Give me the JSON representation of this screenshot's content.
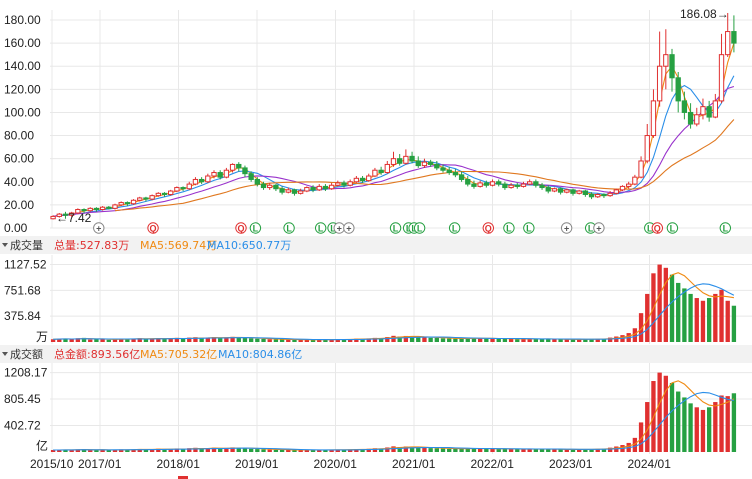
{
  "colors": {
    "up": "#e03030",
    "down": "#26a042",
    "ma5": "#f08a12",
    "ma10": "#2a8ee8",
    "ma20": "#9932cc",
    "ma30": "#e07820",
    "ma60": "#2ea8d8",
    "grid": "#e8e8e8",
    "panel_bar": "#f2f2f2"
  },
  "price_panel": {
    "yticks": [
      "180.00",
      "160.00",
      "140.00",
      "120.00",
      "100.00",
      "80.00",
      "60.00",
      "40.00",
      "20.00",
      "0.00"
    ],
    "max_label": "186.08→",
    "min_label": "←7.42"
  },
  "volume_panel": {
    "title": "成交量",
    "yticks": [
      "1127.52",
      "751.68",
      "375.84"
    ],
    "unit": "万",
    "legend": {
      "total": "总量:527.83万",
      "ma5": "MA5:569.74万",
      "ma10": "MA10:650.77万"
    }
  },
  "amount_panel": {
    "title": "成交额",
    "yticks": [
      "1208.17",
      "805.45",
      "402.72"
    ],
    "unit": "亿",
    "legend": {
      "total": "总金额:893.56亿",
      "ma5": "MA5:705.32亿",
      "ma10": "MA10:804.86亿"
    }
  },
  "x_dates": [
    "2015/10",
    "2017/01",
    "2018/01",
    "2019/01",
    "2020/01",
    "2021/01",
    "2022/01",
    "2023/01",
    "2024/01"
  ],
  "events": [
    {
      "t": 0.071,
      "label": "+",
      "kind": "plus"
    },
    {
      "t": 0.15,
      "label": "Q",
      "kind": "q"
    },
    {
      "t": 0.278,
      "label": "Q",
      "kind": "q"
    },
    {
      "t": 0.299,
      "label": "L",
      "kind": "l"
    },
    {
      "t": 0.348,
      "label": "L",
      "kind": "l"
    },
    {
      "t": 0.394,
      "label": "L",
      "kind": "l"
    },
    {
      "t": 0.412,
      "label": "L",
      "kind": "l"
    },
    {
      "t": 0.421,
      "label": "+",
      "kind": "plus"
    },
    {
      "t": 0.435,
      "label": "+",
      "kind": "plus"
    },
    {
      "t": 0.503,
      "label": "L",
      "kind": "l"
    },
    {
      "t": 0.522,
      "label": "L",
      "kind": "l"
    },
    {
      "t": 0.53,
      "label": "L",
      "kind": "l"
    },
    {
      "t": 0.538,
      "label": "L",
      "kind": "l"
    },
    {
      "t": 0.589,
      "label": "L",
      "kind": "l"
    },
    {
      "t": 0.638,
      "label": "Q",
      "kind": "q"
    },
    {
      "t": 0.668,
      "label": "L",
      "kind": "l"
    },
    {
      "t": 0.697,
      "label": "L",
      "kind": "l"
    },
    {
      "t": 0.752,
      "label": "+",
      "kind": "plus"
    },
    {
      "t": 0.787,
      "label": "L",
      "kind": "l"
    },
    {
      "t": 0.799,
      "label": "+",
      "kind": "plus"
    },
    {
      "t": 0.873,
      "label": "L",
      "kind": "l"
    },
    {
      "t": 0.884,
      "label": "Q",
      "kind": "q"
    },
    {
      "t": 0.906,
      "label": "L",
      "kind": "l"
    },
    {
      "t": 0.983,
      "label": "L",
      "kind": "l"
    }
  ],
  "chart_data": {
    "type": "candlestick",
    "price_range": [
      0,
      186.08
    ],
    "price_max": 186.08,
    "price_min": 7.42,
    "volume_max": 1127.52,
    "amount_max": 1208.17,
    "x_start": "2015/10",
    "x_end": "2024/03",
    "candles": [
      [
        8,
        10,
        7.4,
        11,
        40,
        30
      ],
      [
        10,
        12,
        9,
        13,
        45,
        32
      ],
      [
        12,
        11,
        8,
        14,
        50,
        35
      ],
      [
        11,
        13,
        9,
        14,
        38,
        28
      ],
      [
        13,
        16,
        12,
        17,
        55,
        40
      ],
      [
        16,
        15,
        13,
        17,
        60,
        45
      ],
      [
        15,
        17,
        14,
        18,
        35,
        28
      ],
      [
        17,
        16,
        14,
        18,
        40,
        30
      ],
      [
        16,
        18,
        15,
        19,
        38,
        30
      ],
      [
        18,
        17,
        16,
        19,
        32,
        26
      ],
      [
        17,
        20,
        16,
        21,
        45,
        36
      ],
      [
        20,
        22,
        19,
        23,
        50,
        40
      ],
      [
        22,
        21,
        19,
        23,
        42,
        34
      ],
      [
        21,
        24,
        20,
        25,
        48,
        40
      ],
      [
        24,
        26,
        23,
        27,
        55,
        46
      ],
      [
        26,
        25,
        23,
        27,
        40,
        34
      ],
      [
        25,
        28,
        24,
        29,
        52,
        44
      ],
      [
        28,
        30,
        27,
        31,
        58,
        50
      ],
      [
        30,
        29,
        27,
        31,
        44,
        38
      ],
      [
        29,
        32,
        28,
        33,
        50,
        44
      ],
      [
        32,
        35,
        31,
        36,
        60,
        54
      ],
      [
        35,
        34,
        32,
        36,
        46,
        40
      ],
      [
        34,
        38,
        33,
        40,
        64,
        58
      ],
      [
        38,
        42,
        37,
        44,
        70,
        64
      ],
      [
        42,
        40,
        38,
        44,
        52,
        46
      ],
      [
        40,
        45,
        39,
        47,
        66,
        60
      ],
      [
        45,
        48,
        43,
        50,
        72,
        66
      ],
      [
        48,
        44,
        42,
        50,
        55,
        50
      ],
      [
        44,
        50,
        43,
        52,
        68,
        62
      ],
      [
        50,
        55,
        48,
        56,
        75,
        70
      ],
      [
        55,
        52,
        49,
        57,
        62,
        58
      ],
      [
        52,
        47,
        44,
        54,
        58,
        54
      ],
      [
        47,
        42,
        40,
        49,
        52,
        48
      ],
      [
        42,
        38,
        36,
        44,
        48,
        44
      ],
      [
        38,
        35,
        33,
        40,
        44,
        40
      ],
      [
        35,
        37,
        33,
        39,
        40,
        36
      ],
      [
        37,
        34,
        32,
        38,
        36,
        33
      ],
      [
        34,
        31,
        29,
        36,
        38,
        34
      ],
      [
        31,
        33,
        30,
        35,
        34,
        31
      ],
      [
        33,
        30,
        28,
        34,
        32,
        29
      ],
      [
        30,
        32,
        29,
        34,
        30,
        28
      ],
      [
        32,
        35,
        31,
        36,
        34,
        31
      ],
      [
        35,
        33,
        31,
        37,
        32,
        30
      ],
      [
        33,
        36,
        32,
        38,
        36,
        33
      ],
      [
        36,
        34,
        32,
        38,
        34,
        31
      ],
      [
        34,
        37,
        33,
        39,
        36,
        33
      ],
      [
        37,
        39,
        36,
        41,
        40,
        37
      ],
      [
        39,
        37,
        35,
        41,
        38,
        35
      ],
      [
        37,
        40,
        36,
        42,
        42,
        39
      ],
      [
        40,
        43,
        39,
        45,
        48,
        45
      ],
      [
        43,
        41,
        39,
        45,
        44,
        41
      ],
      [
        41,
        45,
        40,
        47,
        52,
        49
      ],
      [
        45,
        50,
        44,
        52,
        60,
        57
      ],
      [
        50,
        48,
        46,
        53,
        56,
        53
      ],
      [
        48,
        55,
        47,
        58,
        72,
        69
      ],
      [
        55,
        60,
        53,
        66,
        90,
        86
      ],
      [
        60,
        56,
        54,
        64,
        80,
        76
      ],
      [
        56,
        62,
        55,
        68,
        88,
        84
      ],
      [
        62,
        58,
        56,
        66,
        76,
        73
      ],
      [
        58,
        54,
        52,
        62,
        70,
        67
      ],
      [
        54,
        57,
        52,
        60,
        66,
        63
      ],
      [
        57,
        55,
        53,
        59,
        62,
        59
      ],
      [
        55,
        52,
        50,
        58,
        58,
        56
      ],
      [
        52,
        50,
        48,
        55,
        54,
        52
      ],
      [
        50,
        48,
        46,
        53,
        50,
        48
      ],
      [
        48,
        46,
        44,
        51,
        48,
        46
      ],
      [
        46,
        42,
        40,
        49,
        52,
        50
      ],
      [
        42,
        38,
        36,
        45,
        60,
        58
      ],
      [
        38,
        36,
        34,
        41,
        56,
        54
      ],
      [
        36,
        39,
        35,
        41,
        52,
        50
      ],
      [
        39,
        37,
        35,
        41,
        48,
        47
      ],
      [
        37,
        40,
        36,
        42,
        50,
        49
      ],
      [
        40,
        38,
        36,
        42,
        46,
        45
      ],
      [
        38,
        35,
        33,
        40,
        50,
        49
      ],
      [
        35,
        37,
        34,
        39,
        44,
        43
      ],
      [
        37,
        36,
        34,
        39,
        40,
        40
      ],
      [
        36,
        38,
        35,
        40,
        44,
        44
      ],
      [
        38,
        40,
        37,
        42,
        48,
        48
      ],
      [
        40,
        37,
        35,
        42,
        46,
        46
      ],
      [
        37,
        35,
        33,
        39,
        42,
        42
      ],
      [
        35,
        32,
        30,
        37,
        44,
        44
      ],
      [
        32,
        34,
        31,
        35,
        40,
        40
      ],
      [
        34,
        31,
        29,
        35,
        38,
        38
      ],
      [
        31,
        33,
        30,
        34,
        36,
        36
      ],
      [
        33,
        30,
        28,
        34,
        40,
        41
      ],
      [
        30,
        32,
        29,
        33,
        38,
        39
      ],
      [
        32,
        29,
        27,
        33,
        42,
        43
      ],
      [
        29,
        27,
        25,
        31,
        40,
        41
      ],
      [
        27,
        29,
        26,
        30,
        46,
        47
      ],
      [
        29,
        28,
        26,
        30,
        50,
        52
      ],
      [
        28,
        30,
        27,
        32,
        64,
        66
      ],
      [
        30,
        33,
        29,
        34,
        80,
        84
      ],
      [
        33,
        36,
        32,
        37,
        100,
        106
      ],
      [
        36,
        38,
        34,
        40,
        130,
        138
      ],
      [
        38,
        44,
        37,
        46,
        200,
        215
      ],
      [
        44,
        58,
        43,
        62,
        420,
        450
      ],
      [
        58,
        80,
        56,
        90,
        700,
        760
      ],
      [
        80,
        110,
        78,
        120,
        1000,
        1080
      ],
      [
        110,
        140,
        105,
        170,
        1127,
        1208
      ],
      [
        140,
        150,
        120,
        172,
        1080,
        1160
      ],
      [
        150,
        130,
        118,
        155,
        980,
        1050
      ],
      [
        130,
        110,
        100,
        135,
        860,
        920
      ],
      [
        110,
        100,
        94,
        118,
        780,
        830
      ],
      [
        100,
        90,
        86,
        108,
        700,
        740
      ],
      [
        90,
        98,
        88,
        104,
        640,
        680
      ],
      [
        98,
        105,
        94,
        112,
        600,
        640
      ],
      [
        105,
        96,
        92,
        110,
        640,
        680
      ],
      [
        96,
        110,
        95,
        116,
        700,
        760
      ],
      [
        110,
        150,
        108,
        168,
        760,
        860
      ],
      [
        150,
        170,
        148,
        186.08,
        600,
        850
      ],
      [
        170,
        160,
        152,
        184,
        528,
        893.56
      ]
    ],
    "volume_ma5_tail": 569.74,
    "volume_ma10_tail": 650.77,
    "amount_ma5_tail": 705.32,
    "amount_ma10_tail": 804.86
  }
}
